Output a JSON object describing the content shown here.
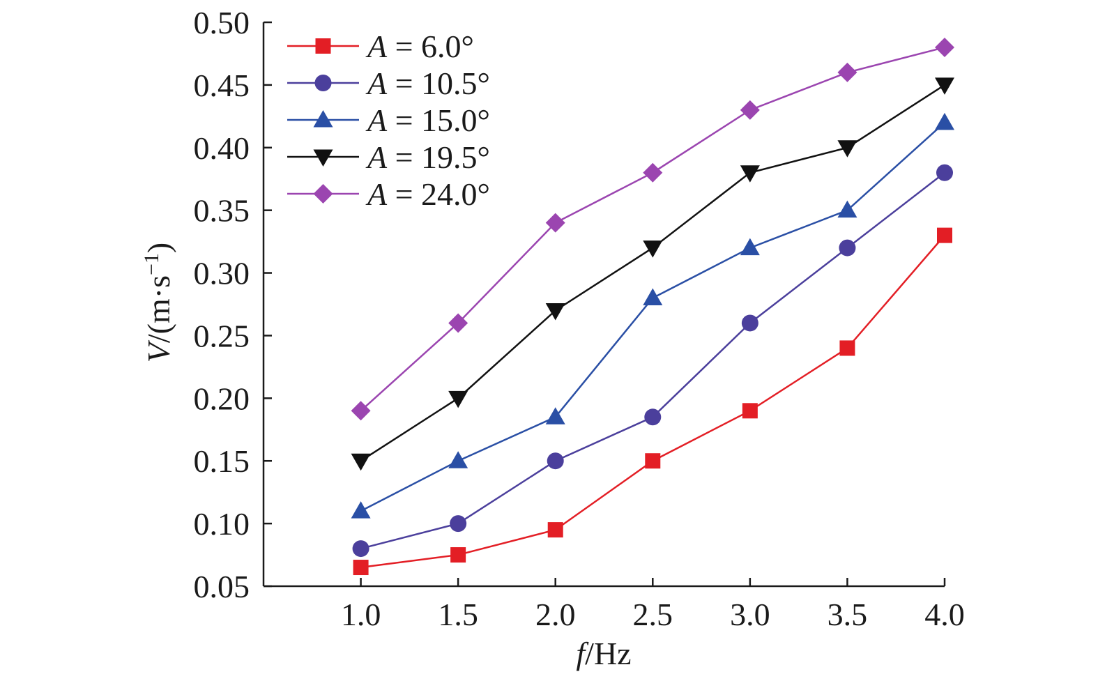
{
  "chart_data": {
    "type": "line",
    "xlabel": {
      "var": "f",
      "unit": "/Hz"
    },
    "ylabel": {
      "var": "V",
      "unit": "/(m·s",
      "exp": "−1",
      "close": ")"
    },
    "x": [
      1.0,
      1.5,
      2.0,
      2.5,
      3.0,
      3.5,
      4.0
    ],
    "x_tick_labels": [
      "1.0",
      "1.5",
      "2.0",
      "2.5",
      "3.0",
      "3.5",
      "4.0"
    ],
    "xlim": [
      0.5,
      4.0
    ],
    "ylim": [
      0.05,
      0.5
    ],
    "y_ticks": [
      0.05,
      0.1,
      0.15,
      0.2,
      0.25,
      0.3,
      0.35,
      0.4,
      0.45,
      0.5
    ],
    "y_tick_labels": [
      "0.05",
      "0.10",
      "0.15",
      "0.20",
      "0.25",
      "0.30",
      "0.35",
      "0.40",
      "0.45",
      "0.50"
    ],
    "grid": false,
    "legend_position": "top-left",
    "series": [
      {
        "var": "A",
        "label": " = 6.0°",
        "marker": "square",
        "color": "#e31e25",
        "values": [
          0.065,
          0.075,
          0.095,
          0.15,
          0.19,
          0.24,
          0.33
        ]
      },
      {
        "var": "A",
        "label": " = 10.5°",
        "marker": "circle",
        "color": "#4b3f9c",
        "values": [
          0.08,
          0.1,
          0.15,
          0.185,
          0.26,
          0.32,
          0.38
        ]
      },
      {
        "var": "A",
        "label": " = 15.0°",
        "marker": "triangle-up",
        "color": "#2a4fa5",
        "values": [
          0.11,
          0.15,
          0.185,
          0.28,
          0.32,
          0.35,
          0.42
        ]
      },
      {
        "var": "A",
        "label": " = 19.5°",
        "marker": "triangle-down",
        "color": "#111111",
        "values": [
          0.15,
          0.2,
          0.27,
          0.32,
          0.38,
          0.4,
          0.45
        ]
      },
      {
        "var": "A",
        "label": " = 24.0°",
        "marker": "diamond",
        "color": "#9b45b0",
        "values": [
          0.19,
          0.26,
          0.34,
          0.38,
          0.43,
          0.46,
          0.48
        ]
      }
    ]
  }
}
